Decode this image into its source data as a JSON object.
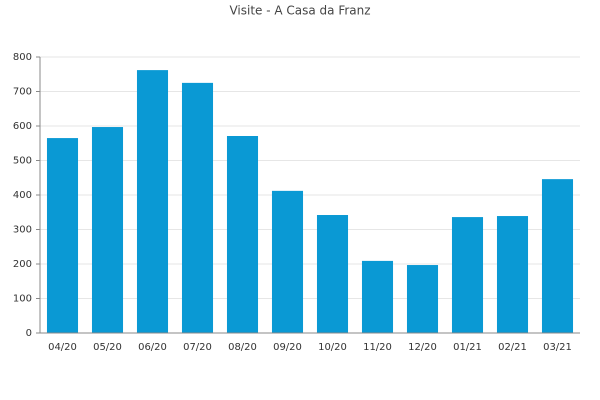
{
  "chart_data": {
    "type": "bar",
    "title": "Visite - A Casa da Franz",
    "categories": [
      "04/20",
      "05/20",
      "06/20",
      "07/20",
      "08/20",
      "09/20",
      "10/20",
      "11/20",
      "12/20",
      "01/21",
      "02/21",
      "03/21"
    ],
    "values": [
      565,
      597,
      762,
      725,
      571,
      412,
      342,
      209,
      197,
      336,
      339,
      446
    ],
    "color": "#0a99d4",
    "ylim": [
      0,
      800
    ],
    "yticks": [
      0,
      100,
      200,
      300,
      400,
      500,
      600,
      700,
      800
    ],
    "grid": true
  }
}
